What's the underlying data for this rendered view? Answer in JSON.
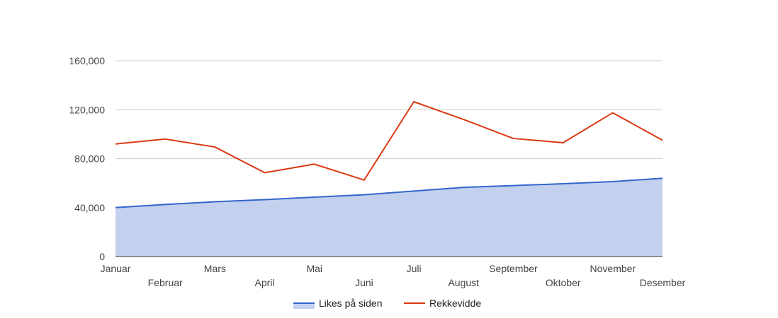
{
  "chart_data": {
    "type": "area",
    "categories": [
      "Januar",
      "Februar",
      "Mars",
      "April",
      "Mai",
      "Juni",
      "Juli",
      "August",
      "September",
      "Oktober",
      "November",
      "Desember"
    ],
    "series": [
      {
        "name": "Likes på siden",
        "type": "area",
        "color": "#3366cc",
        "fill_color": "#c3d1ef",
        "values": [
          40000,
          42500,
          44800,
          46500,
          48500,
          50500,
          53500,
          56500,
          58000,
          59500,
          61200,
          64000
        ]
      },
      {
        "name": "Rekkevidde",
        "type": "line",
        "color": "#dc3912",
        "values": [
          92000,
          96000,
          89500,
          68500,
          75500,
          62500,
          126500,
          112000,
          96500,
          93000,
          117500,
          95000
        ]
      }
    ],
    "y_ticks": [
      "0",
      "40,000",
      "80,000",
      "120,000",
      "160,000"
    ],
    "ylim": [
      0,
      160000
    ],
    "grid": true,
    "legend_position": "bottom",
    "title": "",
    "xlabel": "",
    "ylabel": ""
  }
}
